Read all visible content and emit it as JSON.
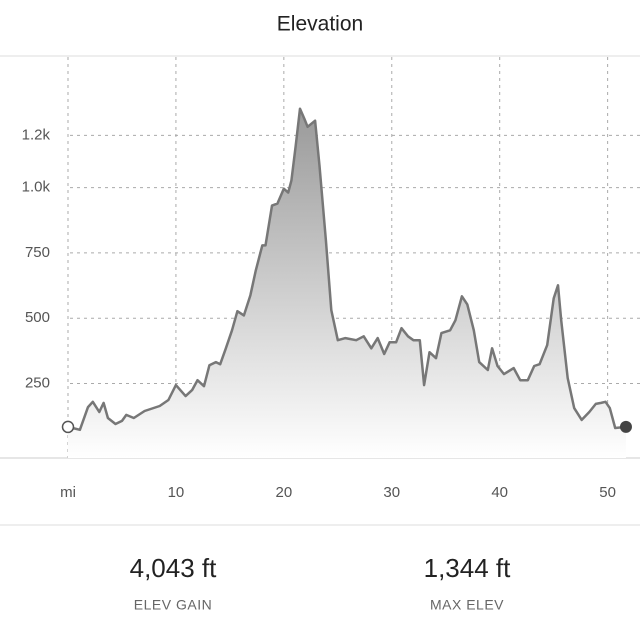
{
  "chart_data": {
    "type": "area",
    "title": "Elevation",
    "x": [
      0,
      1.1,
      1.85,
      2.3,
      2.9,
      3.3,
      3.7,
      4.4,
      5,
      5.4,
      6.1,
      7.1,
      8.5,
      9.3,
      10,
      10.9,
      11.5,
      12,
      12.6,
      13.1,
      13.7,
      14.1,
      14.6,
      15.2,
      15.7,
      16.3,
      16.9,
      17.4,
      18,
      18.3,
      18.9,
      19.4,
      20,
      20.4,
      20.7,
      21.1,
      21.5,
      21.9,
      22.2,
      22.9,
      23.3,
      23.9,
      24.4,
      25,
      25.7,
      26.7,
      27.4,
      28.1,
      28.7,
      29.3,
      29.8,
      30.4,
      30.9,
      31.5,
      32,
      32.6,
      33,
      33.5,
      34.1,
      34.6,
      35.4,
      35.9,
      36.5,
      37,
      37.6,
      38.1,
      38.9,
      39.3,
      39.8,
      40.4,
      41.3,
      41.9,
      42.6,
      43.2,
      43.7,
      44.4,
      45,
      45.4,
      45.7,
      46.3,
      46.9,
      47.6,
      48.3,
      48.9,
      49.4,
      49.8,
      50.2,
      50.7,
      51.7
    ],
    "values": [
      84,
      73,
      160,
      180,
      141,
      176,
      118,
      95,
      107,
      130,
      118,
      145,
      164,
      187,
      244,
      202,
      225,
      263,
      240,
      320,
      332,
      324,
      382,
      454,
      527,
      511,
      588,
      683,
      779,
      779,
      931,
      939,
      996,
      981,
      1027,
      1160,
      1302,
      1263,
      1233,
      1256,
      1084,
      798,
      531,
      416,
      424,
      416,
      431,
      385,
      424,
      363,
      408,
      408,
      462,
      431,
      416,
      416,
      244,
      370,
      347,
      443,
      454,
      492,
      584,
      553,
      454,
      332,
      302,
      385,
      317,
      286,
      309,
      263,
      263,
      317,
      324,
      397,
      576,
      626,
      492,
      271,
      156,
      111,
      141,
      172,
      176,
      180,
      156,
      80,
      84
    ],
    "color": "#777777",
    "xlim": [
      -6.3,
      53
    ],
    "xticks": [
      {
        "value": 0,
        "label": "mi"
      },
      10,
      20,
      30,
      40,
      50
    ],
    "ylim": [
      -35,
      1500
    ],
    "yticks": [
      250,
      500,
      750,
      {
        "value": 1000,
        "label": "1.0k"
      },
      {
        "value": 1200,
        "label": "1.2k"
      }
    ],
    "grid": true,
    "stats": [
      {
        "value": "4,043 ft",
        "label": "ELEV GAIN"
      },
      {
        "value": "1,344 ft",
        "label": "MAX ELEV"
      }
    ]
  }
}
